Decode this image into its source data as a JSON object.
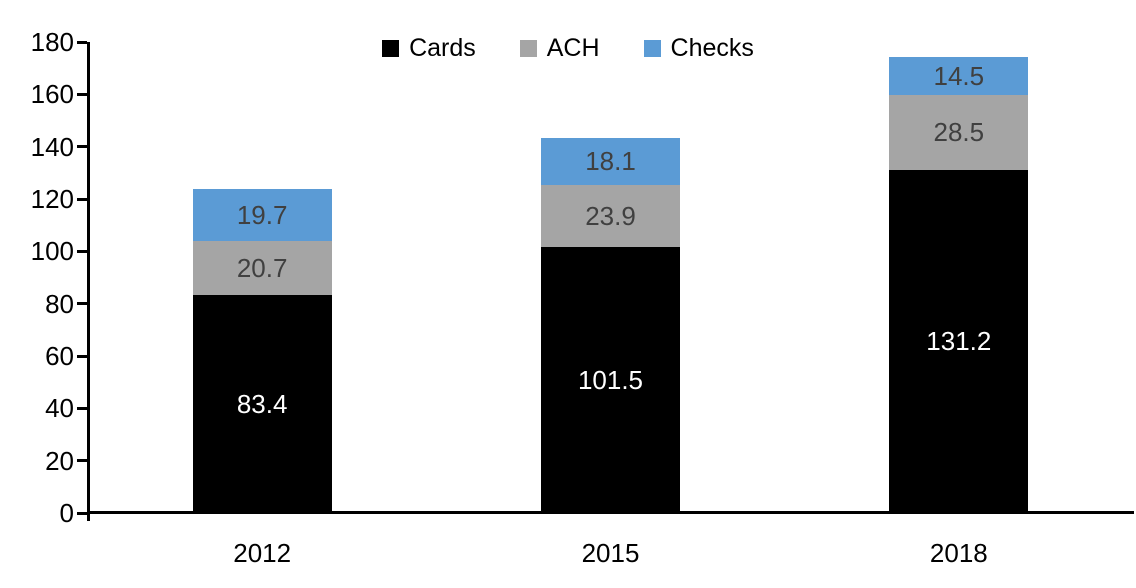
{
  "chart_data": {
    "type": "bar",
    "stacked": true,
    "title": "",
    "xlabel": "",
    "ylabel": "",
    "categories": [
      "2012",
      "2015",
      "2018"
    ],
    "series": [
      {
        "name": "Cards",
        "color": "#000000",
        "label_color": "#ffffff",
        "values": [
          83.4,
          101.5,
          131.2
        ]
      },
      {
        "name": "ACH",
        "color": "#a5a5a5",
        "label_color": "#404040",
        "values": [
          20.7,
          23.9,
          28.5
        ]
      },
      {
        "name": "Checks",
        "color": "#5b9bd5",
        "label_color": "#404040",
        "values": [
          19.7,
          18.1,
          14.5
        ]
      }
    ],
    "ylim": [
      0,
      180
    ],
    "yticks": [
      0,
      20,
      40,
      60,
      80,
      100,
      120,
      140,
      160,
      180
    ],
    "grid": false,
    "legend_position": "top-center",
    "axis_color": "#000000",
    "background_color": "#ffffff"
  }
}
